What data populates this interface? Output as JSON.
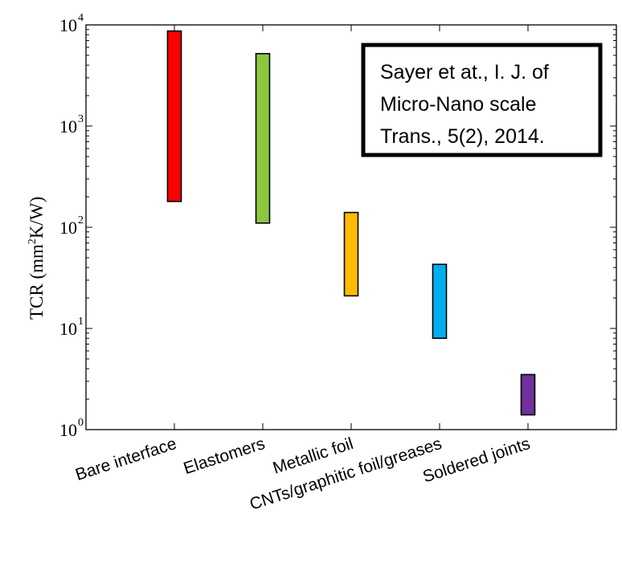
{
  "chart_data": {
    "type": "bar",
    "subtype": "floating-range",
    "title": "",
    "xlabel": "",
    "ylabel": "TCR (mm2K/W)",
    "ylabel_parts": {
      "prefix": "TCR (mm",
      "sup": "2",
      "suffix": "K/W)"
    },
    "yscale": "log",
    "ylim": [
      1,
      10000
    ],
    "y_ticks": [
      {
        "base": "10",
        "exp": "0",
        "value": 1
      },
      {
        "base": "10",
        "exp": "1",
        "value": 10
      },
      {
        "base": "10",
        "exp": "2",
        "value": 100
      },
      {
        "base": "10",
        "exp": "3",
        "value": 1000
      },
      {
        "base": "10",
        "exp": "4",
        "value": 10000
      }
    ],
    "grid": false,
    "legend": "none",
    "categories": [
      "Bare interface",
      "Elastomers",
      "Metallic foil",
      "CNTs/graphitic foil/greases",
      "Soldered joints"
    ],
    "ranges": [
      {
        "category": "Bare interface",
        "low": 180,
        "high": 8700,
        "color": "#ff0000"
      },
      {
        "category": "Elastomers",
        "low": 110,
        "high": 5200,
        "color": "#8dc63f"
      },
      {
        "category": "Metallic foil",
        "low": 21,
        "high": 140,
        "color": "#ffba00"
      },
      {
        "category": "CNTs/graphitic foil/greases",
        "low": 8,
        "high": 43,
        "color": "#00aeef"
      },
      {
        "category": "Soldered joints",
        "low": 1.4,
        "high": 3.5,
        "color": "#7030a0"
      }
    ]
  },
  "annotation": {
    "lines": [
      "Sayer et at., I. J. of",
      "Micro-Nano scale",
      "Trans., 5(2), 2014."
    ]
  }
}
